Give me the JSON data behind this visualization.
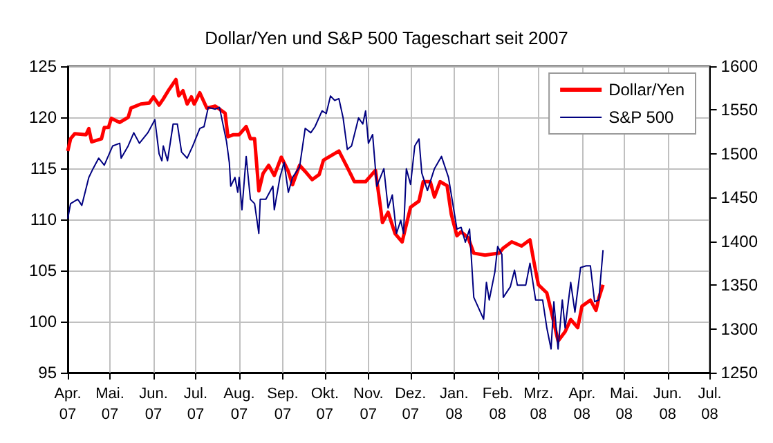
{
  "chart_data": {
    "type": "line",
    "title": "Dollar/Yen und S&P 500 Tageschart seit 2007",
    "xlim": [
      "2007-04-01",
      "2008-07-01"
    ],
    "xticks": [
      {
        "value": "2007-04-01",
        "label": "Apr.\n07"
      },
      {
        "value": "2007-05-01",
        "label": "Mai.\n07"
      },
      {
        "value": "2007-06-01",
        "label": "Jun.\n07"
      },
      {
        "value": "2007-07-01",
        "label": "Jul.\n07"
      },
      {
        "value": "2007-08-01",
        "label": "Aug.\n07"
      },
      {
        "value": "2007-09-01",
        "label": "Sep.\n07"
      },
      {
        "value": "2007-10-01",
        "label": "Okt.\n07"
      },
      {
        "value": "2007-11-01",
        "label": "Nov.\n07"
      },
      {
        "value": "2007-12-01",
        "label": "Dez.\n07"
      },
      {
        "value": "2008-01-01",
        "label": "Jan.\n08"
      },
      {
        "value": "2008-02-01",
        "label": "Feb.\n08"
      },
      {
        "value": "2008-03-01",
        "label": "Mrz.\n08"
      },
      {
        "value": "2008-04-01",
        "label": "Apr.\n08"
      },
      {
        "value": "2008-05-01",
        "label": "Mai.\n08"
      },
      {
        "value": "2008-06-01",
        "label": "Jun.\n08"
      },
      {
        "value": "2008-07-01",
        "label": "Jul.\n08"
      }
    ],
    "ylim": [
      95,
      125
    ],
    "yticks": [
      95,
      100,
      105,
      110,
      115,
      120,
      125
    ],
    "y2lim": [
      1250,
      1600
    ],
    "y2ticks": [
      1250,
      1300,
      1350,
      1400,
      1450,
      1500,
      1550,
      1600
    ],
    "grid": true,
    "legend": "top right",
    "marker": "none",
    "line_style": "solid",
    "series": [
      {
        "name": "Dollar/Yen",
        "color": "#ff0000",
        "x": [
          "2007-04-01",
          "2007-04-03",
          "2007-04-06",
          "2007-04-14",
          "2007-04-16",
          "2007-04-18",
          "2007-04-25",
          "2007-04-27",
          "2007-04-30",
          "2007-05-02",
          "2007-05-08",
          "2007-05-14",
          "2007-05-16",
          "2007-05-23",
          "2007-05-29",
          "2007-06-01",
          "2007-06-05",
          "2007-06-08",
          "2007-06-12",
          "2007-06-17",
          "2007-06-19",
          "2007-06-22",
          "2007-06-25",
          "2007-06-28",
          "2007-06-30",
          "2007-07-04",
          "2007-07-09",
          "2007-07-15",
          "2007-07-22",
          "2007-07-24",
          "2007-07-28",
          "2007-08-01",
          "2007-08-06",
          "2007-08-09",
          "2007-08-12",
          "2007-08-15",
          "2007-08-18",
          "2007-08-22",
          "2007-08-26",
          "2007-08-31",
          "2007-09-05",
          "2007-09-08",
          "2007-09-13",
          "2007-09-17",
          "2007-09-22",
          "2007-09-27",
          "2007-09-30",
          "2007-10-11",
          "2007-10-17",
          "2007-10-22",
          "2007-10-30",
          "2007-11-06",
          "2007-11-09",
          "2007-11-11",
          "2007-11-15",
          "2007-11-20",
          "2007-11-25",
          "2007-12-01",
          "2007-12-07",
          "2007-12-10",
          "2007-12-15",
          "2007-12-18",
          "2007-12-22",
          "2007-12-27",
          "2007-12-30",
          "2008-01-03",
          "2008-01-06",
          "2008-01-11",
          "2008-01-15",
          "2008-01-23",
          "2008-02-02",
          "2008-02-05",
          "2008-02-11",
          "2008-02-18",
          "2008-02-24",
          "2008-02-27",
          "2008-03-01",
          "2008-03-07",
          "2008-03-10",
          "2008-03-15",
          "2008-03-20",
          "2008-03-24",
          "2008-03-29",
          "2008-04-01",
          "2008-04-07",
          "2008-04-11",
          "2008-04-13",
          "2008-04-16"
        ],
        "values": [
          116.7,
          117.9,
          118.4,
          118.3,
          118.9,
          117.6,
          117.9,
          119.0,
          119.0,
          119.9,
          119.5,
          120.0,
          120.9,
          121.3,
          121.4,
          122.0,
          121.2,
          121.8,
          122.7,
          123.7,
          122.1,
          122.6,
          121.3,
          122.0,
          121.3,
          122.4,
          120.9,
          121.1,
          120.4,
          118.1,
          118.3,
          118.3,
          119.1,
          117.9,
          117.9,
          112.8,
          114.5,
          115.3,
          114.3,
          116.1,
          114.7,
          113.4,
          115.3,
          114.7,
          113.9,
          114.4,
          115.8,
          116.7,
          115.1,
          113.7,
          113.7,
          114.8,
          111.8,
          109.7,
          110.7,
          108.6,
          107.8,
          111.2,
          111.8,
          113.7,
          113.7,
          112.2,
          113.7,
          113.3,
          110.5,
          108.4,
          108.8,
          108.2,
          106.7,
          106.5,
          106.7,
          107.2,
          107.8,
          107.4,
          108.0,
          105.7,
          103.6,
          102.8,
          101.1,
          98.1,
          99.0,
          100.2,
          99.4,
          101.5,
          102.1,
          101.1,
          102.3,
          103.6
        ]
      },
      {
        "name": "S&P 500",
        "color": "#000080",
        "axis": "y2",
        "x": [
          "2007-04-01",
          "2007-04-03",
          "2007-04-08",
          "2007-04-09",
          "2007-04-11",
          "2007-04-16",
          "2007-04-19",
          "2007-04-23",
          "2007-04-27",
          "2007-05-03",
          "2007-05-08",
          "2007-05-09",
          "2007-05-14",
          "2007-05-18",
          "2007-05-22",
          "2007-05-28",
          "2007-06-02",
          "2007-06-05",
          "2007-06-07",
          "2007-06-08",
          "2007-06-11",
          "2007-06-15",
          "2007-06-18",
          "2007-06-21",
          "2007-06-25",
          "2007-06-29",
          "2007-07-04",
          "2007-07-07",
          "2007-07-10",
          "2007-07-15",
          "2007-07-18",
          "2007-07-23",
          "2007-07-25",
          "2007-07-26",
          "2007-07-29",
          "2007-07-31",
          "2007-08-01",
          "2007-08-03",
          "2007-08-06",
          "2007-08-09",
          "2007-08-12",
          "2007-08-15",
          "2007-08-16",
          "2007-08-20",
          "2007-08-25",
          "2007-08-26",
          "2007-08-30",
          "2007-09-02",
          "2007-09-05",
          "2007-09-08",
          "2007-09-13",
          "2007-09-17",
          "2007-09-21",
          "2007-09-24",
          "2007-09-29",
          "2007-10-02",
          "2007-10-05",
          "2007-10-08",
          "2007-10-11",
          "2007-10-14",
          "2007-10-17",
          "2007-10-20",
          "2007-10-25",
          "2007-10-28",
          "2007-10-30",
          "2007-11-01",
          "2007-11-04",
          "2007-11-07",
          "2007-11-12",
          "2007-11-15",
          "2007-11-18",
          "2007-11-21",
          "2007-11-24",
          "2007-11-26",
          "2007-11-28",
          "2007-12-01",
          "2007-12-04",
          "2007-12-07",
          "2007-12-09",
          "2007-12-13",
          "2007-12-18",
          "2007-12-23",
          "2007-12-28",
          "2008-01-03",
          "2008-01-06",
          "2008-01-09",
          "2008-01-12",
          "2008-01-15",
          "2008-01-22",
          "2008-01-24",
          "2008-01-26",
          "2008-01-30",
          "2008-02-01",
          "2008-02-04",
          "2008-02-05",
          "2008-02-10",
          "2008-02-13",
          "2008-02-15",
          "2008-02-21",
          "2008-02-24",
          "2008-02-28",
          "2008-03-04",
          "2008-03-07",
          "2008-03-10",
          "2008-03-12",
          "2008-03-15",
          "2008-03-18",
          "2008-03-20",
          "2008-03-24",
          "2008-03-27",
          "2008-03-31",
          "2008-04-04",
          "2008-04-07",
          "2008-04-10",
          "2008-04-13",
          "2008-04-16"
        ],
        "values": [
          1426,
          1443,
          1448,
          1446,
          1441,
          1473,
          1483,
          1495,
          1487,
          1509,
          1512,
          1495,
          1509,
          1524,
          1512,
          1524,
          1539,
          1500,
          1492,
          1509,
          1492,
          1534,
          1534,
          1502,
          1495,
          1509,
          1529,
          1531,
          1553,
          1551,
          1553,
          1514,
          1490,
          1463,
          1473,
          1456,
          1473,
          1436,
          1497,
          1448,
          1443,
          1409,
          1448,
          1448,
          1463,
          1436,
          1473,
          1490,
          1456,
          1473,
          1485,
          1529,
          1524,
          1531,
          1549,
          1546,
          1566,
          1561,
          1563,
          1541,
          1505,
          1509,
          1541,
          1534,
          1549,
          1512,
          1522,
          1463,
          1483,
          1438,
          1453,
          1409,
          1424,
          1409,
          1483,
          1465,
          1509,
          1517,
          1478,
          1458,
          1483,
          1497,
          1473,
          1414,
          1416,
          1399,
          1414,
          1336,
          1311,
          1353,
          1333,
          1365,
          1394,
          1385,
          1336,
          1348,
          1367,
          1350,
          1350,
          1375,
          1333,
          1333,
          1301,
          1277,
          1331,
          1277,
          1333,
          1301,
          1353,
          1319,
          1370,
          1372,
          1372,
          1331,
          1333,
          1390
        ]
      }
    ]
  }
}
